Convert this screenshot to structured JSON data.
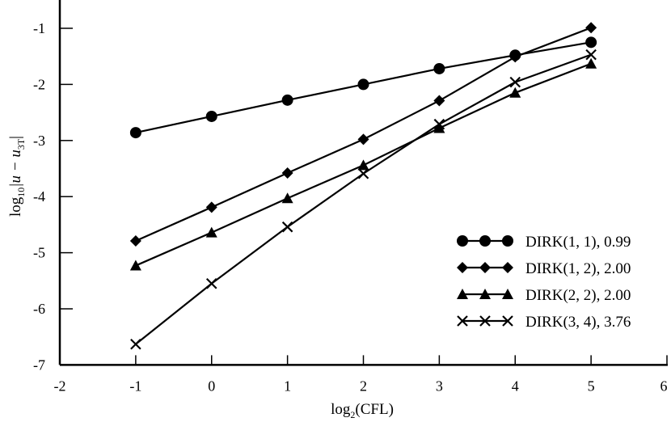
{
  "chart_data": {
    "type": "line",
    "title": "",
    "xlabel": "log2(CFL)",
    "xlabel_main": "log",
    "xlabel_sub": "2",
    "xlabel_rest": "(CFL)",
    "ylabel": "log10|u − u3T|",
    "ylabel_main": "log",
    "ylabel_sub": "10",
    "ylabel_mid": "|u − u",
    "ylabel_sub2": "3T",
    "ylabel_end": "|",
    "xlim": [
      -2,
      6
    ],
    "ylim": [
      -7,
      -0.5
    ],
    "xticks": [
      "-2",
      "-1",
      "0",
      "1",
      "2",
      "3",
      "4",
      "5",
      "6"
    ],
    "yticks": [
      "-1",
      "-2",
      "-3",
      "-4",
      "-5",
      "-6",
      "-7"
    ],
    "grid": false,
    "legend_position": "bottom-right",
    "x": [
      -1,
      0,
      1,
      2,
      3,
      4,
      5
    ],
    "series": [
      {
        "name": "DIRK(1, 1), 0.99",
        "marker": "circle",
        "values": [
          -2.86,
          -2.57,
          -2.28,
          -2.0,
          -1.72,
          -1.48,
          -1.25
        ]
      },
      {
        "name": "DIRK(1, 2), 2.00",
        "marker": "diamond",
        "values": [
          -4.79,
          -4.19,
          -3.58,
          -2.98,
          -2.29,
          -1.51,
          -0.99
        ]
      },
      {
        "name": "DIRK(2, 2), 2.00",
        "marker": "triangle",
        "values": [
          -5.23,
          -4.64,
          -4.03,
          -3.44,
          -2.78,
          -2.15,
          -1.63
        ]
      },
      {
        "name": "DIRK(3, 4), 3.76",
        "marker": "cross",
        "values": [
          -6.63,
          -5.55,
          -4.54,
          -3.59,
          -2.71,
          -1.96,
          -1.47
        ]
      }
    ],
    "color": "#000000"
  }
}
